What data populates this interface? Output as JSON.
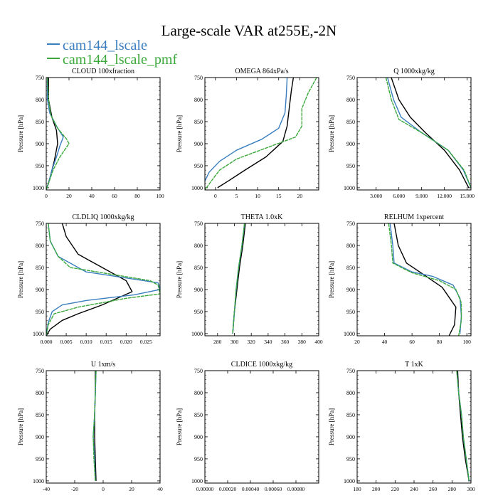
{
  "title": "Large-scale VAR at255E,-2N",
  "legend": [
    {
      "name": "cam144_lscale",
      "color": "#3a7ebf"
    },
    {
      "name": "cam144_lscale_pmf",
      "color": "#3aa83a"
    }
  ],
  "colors": {
    "obs": "#000000",
    "lscale": "#3a7ebf",
    "pmf": "#3aa83a"
  },
  "chart_data": [
    {
      "type": "line",
      "title": "CLOUD 100xfraction",
      "xlabel": "",
      "ylabel": "Pressure [hPa]",
      "xlim": [
        0,
        100
      ],
      "ylim": [
        1005,
        750
      ],
      "yticks": [
        750,
        800,
        850,
        900,
        950,
        1000
      ],
      "xticks": [
        0,
        20,
        40,
        60,
        80,
        100
      ],
      "xticklabels": [
        "0",
        "20",
        "40",
        "60",
        "80",
        "100"
      ],
      "series": [
        {
          "key": "obs",
          "points": [
            [
              2,
              750
            ],
            [
              2,
              800
            ],
            [
              5,
              840
            ],
            [
              9,
              870
            ],
            [
              10,
              900
            ],
            [
              7,
              940
            ],
            [
              3,
              980
            ],
            [
              0,
              1005
            ]
          ]
        },
        {
          "key": "lscale",
          "points": [
            [
              1,
              750
            ],
            [
              1,
              800
            ],
            [
              3,
              830
            ],
            [
              9,
              860
            ],
            [
              15,
              885
            ],
            [
              12,
              905
            ],
            [
              9,
              930
            ],
            [
              5,
              960
            ],
            [
              2,
              990
            ],
            [
              0,
              1005
            ]
          ]
        },
        {
          "key": "pmf",
          "points": [
            [
              1,
              750
            ],
            [
              2,
              800
            ],
            [
              4,
              835
            ],
            [
              10,
              865
            ],
            [
              18,
              890
            ],
            [
              20,
              900
            ],
            [
              12,
              930
            ],
            [
              6,
              960
            ],
            [
              2,
              990
            ],
            [
              0,
              1005
            ]
          ]
        }
      ]
    },
    {
      "type": "line",
      "title": "OMEGA 864xPa/s",
      "xlabel": "",
      "ylabel": "Pressure [hPa]",
      "xlim": [
        -2.5,
        24.5
      ],
      "ylim": [
        1005,
        750
      ],
      "yticks": [
        750,
        800,
        850,
        900,
        950,
        1000
      ],
      "xticks": [
        0,
        5,
        10,
        15,
        20
      ],
      "xticklabels": [
        "0",
        "5",
        "10",
        "15",
        "20"
      ],
      "series": [
        {
          "key": "obs",
          "points": [
            [
              18.5,
              750
            ],
            [
              18,
              780
            ],
            [
              17.5,
              820
            ],
            [
              17,
              860
            ],
            [
              16,
              895
            ],
            [
              12,
              930
            ],
            [
              7,
              960
            ],
            [
              3,
              985
            ],
            [
              0.5,
              1000
            ]
          ]
        },
        {
          "key": "lscale",
          "points": [
            [
              17,
              750
            ],
            [
              16.8,
              790
            ],
            [
              16.5,
              830
            ],
            [
              15,
              865
            ],
            [
              11,
              890
            ],
            [
              5,
              915
            ],
            [
              1,
              940
            ],
            [
              -1.5,
              965
            ],
            [
              -2.5,
              985
            ]
          ]
        },
        {
          "key": "pmf",
          "points": [
            [
              24,
              750
            ],
            [
              22,
              785
            ],
            [
              20.5,
              820
            ],
            [
              20.5,
              860
            ],
            [
              19,
              885
            ],
            [
              12,
              910
            ],
            [
              5,
              935
            ],
            [
              1,
              960
            ],
            [
              -1,
              985
            ],
            [
              -2.5,
              1005
            ]
          ]
        }
      ]
    },
    {
      "type": "line",
      "title": "Q 1000xkg/kg",
      "xlabel": "",
      "ylabel": "Pressure [hPa]",
      "xlim": [
        0.5,
        15.5
      ],
      "ylim": [
        1005,
        750
      ],
      "yticks": [
        750,
        800,
        850,
        900,
        950,
        1000
      ],
      "xticks": [
        3,
        6,
        9,
        12,
        15
      ],
      "xticklabels": [
        "3.000",
        "6.000",
        "9.000",
        "12.000",
        "15.000"
      ],
      "series": [
        {
          "key": "obs",
          "points": [
            [
              5,
              750
            ],
            [
              6,
              800
            ],
            [
              7.5,
              840
            ],
            [
              9.5,
              875
            ],
            [
              12,
              915
            ],
            [
              14,
              960
            ],
            [
              15.2,
              1000
            ]
          ]
        },
        {
          "key": "lscale",
          "points": [
            [
              4.5,
              750
            ],
            [
              5.3,
              800
            ],
            [
              6.3,
              840
            ],
            [
              9,
              875
            ],
            [
              12.5,
              915
            ],
            [
              14.5,
              960
            ],
            [
              15.5,
              1000
            ]
          ]
        },
        {
          "key": "pmf",
          "points": [
            [
              4.3,
              750
            ],
            [
              5,
              800
            ],
            [
              6,
              845
            ],
            [
              9,
              875
            ],
            [
              12.5,
              915
            ],
            [
              14.6,
              960
            ],
            [
              15.5,
              1000
            ]
          ]
        }
      ]
    },
    {
      "type": "line",
      "title": "CLDLIQ 1000xkg/kg",
      "xlabel": "",
      "ylabel": "Pressure [hPa]",
      "xlim": [
        0,
        0.0285
      ],
      "ylim": [
        1005,
        750
      ],
      "yticks": [
        750,
        800,
        850,
        900,
        950,
        1000
      ],
      "xticks": [
        0,
        0.005,
        0.01,
        0.015,
        0.02,
        0.025
      ],
      "xticklabels": [
        "0.000",
        "0.005",
        "0.010",
        "0.015",
        "0.020",
        "0.025"
      ],
      "series": [
        {
          "key": "obs",
          "points": [
            [
              0.004,
              750
            ],
            [
              0.005,
              780
            ],
            [
              0.008,
              820
            ],
            [
              0.014,
              850
            ],
            [
              0.02,
              880
            ],
            [
              0.0215,
              905
            ],
            [
              0.014,
              935
            ],
            [
              0.008,
              955
            ],
            [
              0.004,
              970
            ],
            [
              0.001,
              990
            ],
            [
              0,
              1005
            ]
          ]
        },
        {
          "key": "lscale",
          "points": [
            [
              0.0005,
              750
            ],
            [
              0.001,
              790
            ],
            [
              0.003,
              825
            ],
            [
              0.01,
              860
            ],
            [
              0.028,
              885
            ],
            [
              0.0285,
              900
            ],
            [
              0.022,
              912
            ],
            [
              0.01,
              925
            ],
            [
              0.004,
              935
            ],
            [
              0.0015,
              950
            ],
            [
              0.0005,
              975
            ],
            [
              0,
              1005
            ]
          ]
        },
        {
          "key": "pmf",
          "points": [
            [
              0.0005,
              750
            ],
            [
              0.001,
              790
            ],
            [
              0.003,
              825
            ],
            [
              0.006,
              850
            ],
            [
              0.026,
              880
            ],
            [
              0.028,
              890
            ],
            [
              0.0285,
              910
            ],
            [
              0.02,
              920
            ],
            [
              0.008,
              940
            ],
            [
              0.002,
              955
            ],
            [
              0.0005,
              980
            ],
            [
              0,
              1005
            ]
          ]
        }
      ]
    },
    {
      "type": "line",
      "title": "THETA 1.0xK",
      "xlabel": "",
      "ylabel": "Pressure [hPa]",
      "xlim": [
        265,
        400
      ],
      "ylim": [
        1005,
        750
      ],
      "yticks": [
        750,
        800,
        850,
        900,
        950,
        1000
      ],
      "xticks": [
        280,
        300,
        320,
        340,
        360,
        380,
        400
      ],
      "xticklabels": [
        "280",
        "300",
        "320",
        "340",
        "360",
        "380",
        "400"
      ],
      "series": [
        {
          "key": "obs",
          "points": [
            [
              313,
              750
            ],
            [
              310,
              800
            ],
            [
              306,
              850
            ],
            [
              303,
              900
            ],
            [
              300,
              950
            ],
            [
              298,
              1000
            ]
          ]
        },
        {
          "key": "lscale",
          "points": [
            [
              312,
              750
            ],
            [
              309,
              800
            ],
            [
              305,
              850
            ],
            [
              302,
              900
            ],
            [
              300,
              950
            ],
            [
              298,
              1000
            ]
          ]
        },
        {
          "key": "pmf",
          "points": [
            [
              312,
              750
            ],
            [
              309,
              800
            ],
            [
              305,
              850
            ],
            [
              302,
              900
            ],
            [
              300,
              950
            ],
            [
              298,
              1000
            ]
          ]
        }
      ]
    },
    {
      "type": "line",
      "title": "RELHUM 1xpercent",
      "xlabel": "",
      "ylabel": "Pressure [hPa]",
      "xlim": [
        20,
        103
      ],
      "ylim": [
        1005,
        750
      ],
      "yticks": [
        750,
        800,
        850,
        900,
        950,
        1000
      ],
      "xticks": [
        20,
        40,
        60,
        80,
        100
      ],
      "xticklabels": [
        "20",
        "40",
        "60",
        "80",
        "100"
      ],
      "series": [
        {
          "key": "obs",
          "points": [
            [
              47,
              750
            ],
            [
              50,
              800
            ],
            [
              56,
              840
            ],
            [
              68,
              865
            ],
            [
              82,
              895
            ],
            [
              92,
              940
            ],
            [
              91,
              980
            ],
            [
              87,
              1005
            ]
          ]
        },
        {
          "key": "lscale",
          "points": [
            [
              44,
              750
            ],
            [
              46,
              800
            ],
            [
              47,
              840
            ],
            [
              60,
              860
            ],
            [
              75,
              870
            ],
            [
              90,
              890
            ],
            [
              95,
              920
            ],
            [
              96,
              960
            ],
            [
              95,
              1000
            ]
          ]
        },
        {
          "key": "pmf",
          "points": [
            [
              43,
              750
            ],
            [
              45,
              800
            ],
            [
              46,
              840
            ],
            [
              60,
              862
            ],
            [
              80,
              880
            ],
            [
              92,
              900
            ],
            [
              96,
              930
            ],
            [
              96,
              970
            ],
            [
              94,
              1005
            ]
          ]
        }
      ]
    },
    {
      "type": "line",
      "title": "U 1xm/s",
      "xlabel": "",
      "ylabel": "Pressure [hPa]",
      "xlim": [
        -40,
        40
      ],
      "ylim": [
        1005,
        750
      ],
      "yticks": [
        750,
        800,
        850,
        900,
        950,
        1000
      ],
      "xticks": [
        -40,
        -20,
        0,
        20,
        40
      ],
      "xticklabels": [
        "-40",
        "-20",
        "0",
        "20",
        "40"
      ],
      "series": [
        {
          "key": "obs",
          "points": [
            [
              -5.5,
              750
            ],
            [
              -5.5,
              800
            ],
            [
              -6,
              850
            ],
            [
              -6,
              900
            ],
            [
              -5.5,
              950
            ],
            [
              -5,
              1000
            ]
          ]
        },
        {
          "key": "lscale",
          "points": [
            [
              -5,
              750
            ],
            [
              -5.5,
              800
            ],
            [
              -6,
              850
            ],
            [
              -7,
              900
            ],
            [
              -6,
              950
            ],
            [
              -5.5,
              1000
            ]
          ]
        },
        {
          "key": "pmf",
          "points": [
            [
              -5,
              750
            ],
            [
              -5.5,
              800
            ],
            [
              -6,
              850
            ],
            [
              -7,
              900
            ],
            [
              -6.5,
              950
            ],
            [
              -5.5,
              1000
            ]
          ]
        }
      ]
    },
    {
      "type": "line",
      "title": "CLDICE 1000xkg/kg",
      "xlabel": "",
      "ylabel": "Pressure [hPa]",
      "xlim": [
        0,
        0.001
      ],
      "ylim": [
        1005,
        750
      ],
      "yticks": [
        750,
        800,
        850,
        900,
        950,
        1000
      ],
      "xticks": [
        0,
        0.0002,
        0.0004,
        0.0006,
        0.0008
      ],
      "xticklabels": [
        "0.00000",
        "0.00020",
        "0.00040",
        "0.00060",
        "0.00080"
      ],
      "series": []
    },
    {
      "type": "line",
      "title": "T 1xK",
      "xlabel": "",
      "ylabel": "Pressure [hPa]",
      "xlim": [
        180,
        300
      ],
      "ylim": [
        1005,
        750
      ],
      "yticks": [
        750,
        800,
        850,
        900,
        950,
        1000
      ],
      "xticks": [
        180,
        200,
        220,
        240,
        260,
        280,
        300
      ],
      "xticklabels": [
        "180",
        "200",
        "220",
        "240",
        "260",
        "280",
        "300"
      ],
      "series": [
        {
          "key": "obs",
          "points": [
            [
              286,
              750
            ],
            [
              287,
              800
            ],
            [
              289,
              850
            ],
            [
              291,
              900
            ],
            [
              294,
              950
            ],
            [
              298,
              1000
            ]
          ]
        },
        {
          "key": "lscale",
          "points": [
            [
              285,
              750
            ],
            [
              287,
              800
            ],
            [
              290,
              850
            ],
            [
              292,
              900
            ],
            [
              295,
              950
            ],
            [
              298,
              1000
            ]
          ]
        },
        {
          "key": "pmf",
          "points": [
            [
              285,
              750
            ],
            [
              287,
              800
            ],
            [
              290,
              850
            ],
            [
              292,
              900
            ],
            [
              295,
              950
            ],
            [
              298,
              1000
            ]
          ]
        }
      ]
    }
  ]
}
